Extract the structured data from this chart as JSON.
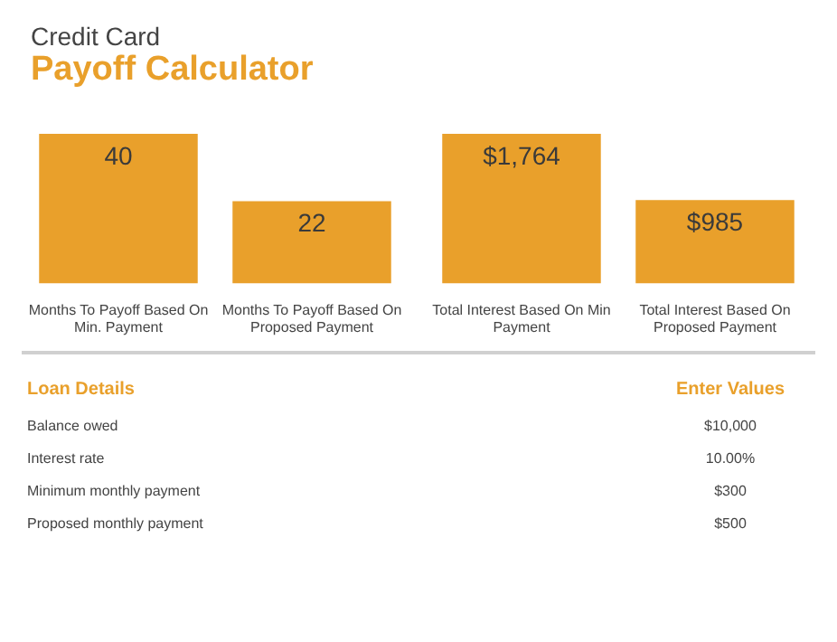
{
  "chart_data": [
    {
      "type": "bar",
      "title": "Credit Card",
      "subtitle": "Payoff Calculator",
      "categories": [
        "Months To Payoff Based On Min. Payment",
        "Months To Payoff Based On Proposed Payment"
      ],
      "values": [
        40,
        22
      ],
      "color": "#e9a02b",
      "data_labels": true
    },
    {
      "type": "bar",
      "categories": [
        "Total Interest Based On Min Payment",
        "Total Interest Based On Proposed Payment"
      ],
      "values": [
        1764,
        985
      ],
      "value_labels": [
        "$1,764",
        "$985"
      ],
      "color": "#e9a02b"
    },
    {
      "type": "other",
      "annotations": [
        "Loan Details",
        "Enter Values",
        "Balance owed",
        "$10,000",
        "Interest rate",
        "10.00%",
        "Minimum monthly payment",
        "$300",
        "Proposed monthly payment",
        "$500"
      ]
    }
  ]
}
